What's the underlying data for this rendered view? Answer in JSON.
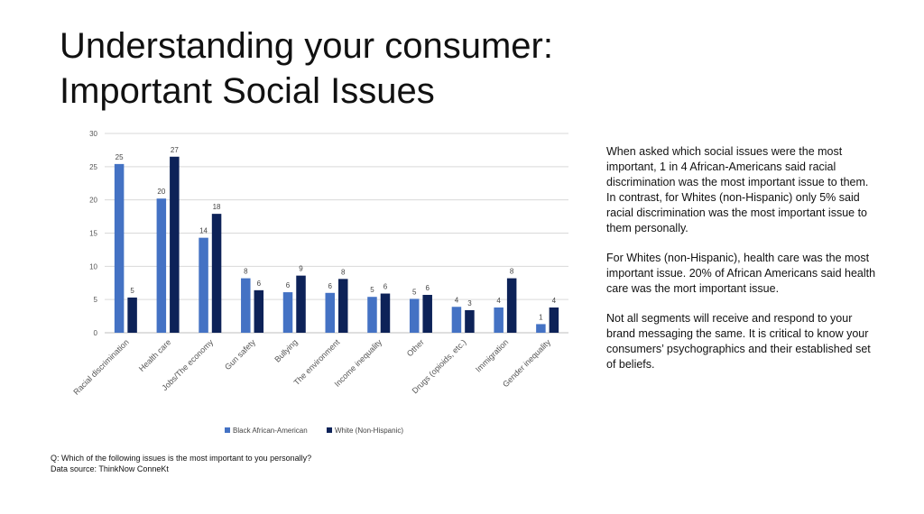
{
  "title": {
    "line1": "Understanding your consumer:",
    "line2": "Important Social Issues"
  },
  "chart_data": {
    "type": "bar",
    "categories": [
      "Racial discrimination",
      "Health care",
      "Jobs/The economy",
      "Gun safety",
      "Bullying",
      "The environment",
      "Income inequality",
      "Other",
      "Drugs (opioids, etc.)",
      "Immigration",
      "Gender inequality"
    ],
    "series": [
      {
        "name": "Black African-American",
        "color": "#4472c4",
        "values": [
          25.4,
          20.2,
          14.3,
          8.2,
          6.1,
          6.0,
          5.4,
          5.1,
          3.9,
          3.8,
          1.3
        ],
        "labels": [
          "25",
          "20",
          "14",
          "8",
          "6",
          "6",
          "5",
          "5",
          "4",
          "4",
          "1"
        ]
      },
      {
        "name": "White (Non-Hispanic)",
        "color": "#0d2258",
        "values": [
          5.3,
          26.5,
          17.9,
          6.4,
          8.6,
          8.1,
          5.9,
          5.7,
          3.4,
          8.2,
          3.8
        ],
        "labels": [
          "5",
          "27",
          "18",
          "6",
          "9",
          "8",
          "6",
          "6",
          "3",
          "8",
          "4"
        ]
      }
    ],
    "ylim": [
      0,
      30
    ],
    "yticks": [
      0,
      5,
      10,
      15,
      20,
      25,
      30
    ],
    "grid": true,
    "legend": "bottom"
  },
  "side_text": {
    "p1": "When asked which social issues were the most important, 1 in 4 African-Americans said racial discrimination was the most important issue to them.  In contrast, for Whites (non-Hispanic) only 5% said racial discrimination was the most important issue to them personally.",
    "p2": "For Whites (non-Hispanic), health care was the most important issue. 20% of African Americans said health care was the mort important issue.",
    "p3": "Not all segments will receive and respond to your brand messaging the same. It is critical to know your consumers’ psychographics and their established set of beliefs."
  },
  "footnote": {
    "question": "Q: Which of the following issues is the most important to you personally?",
    "source": "Data source: ThinkNow ConneKt"
  }
}
